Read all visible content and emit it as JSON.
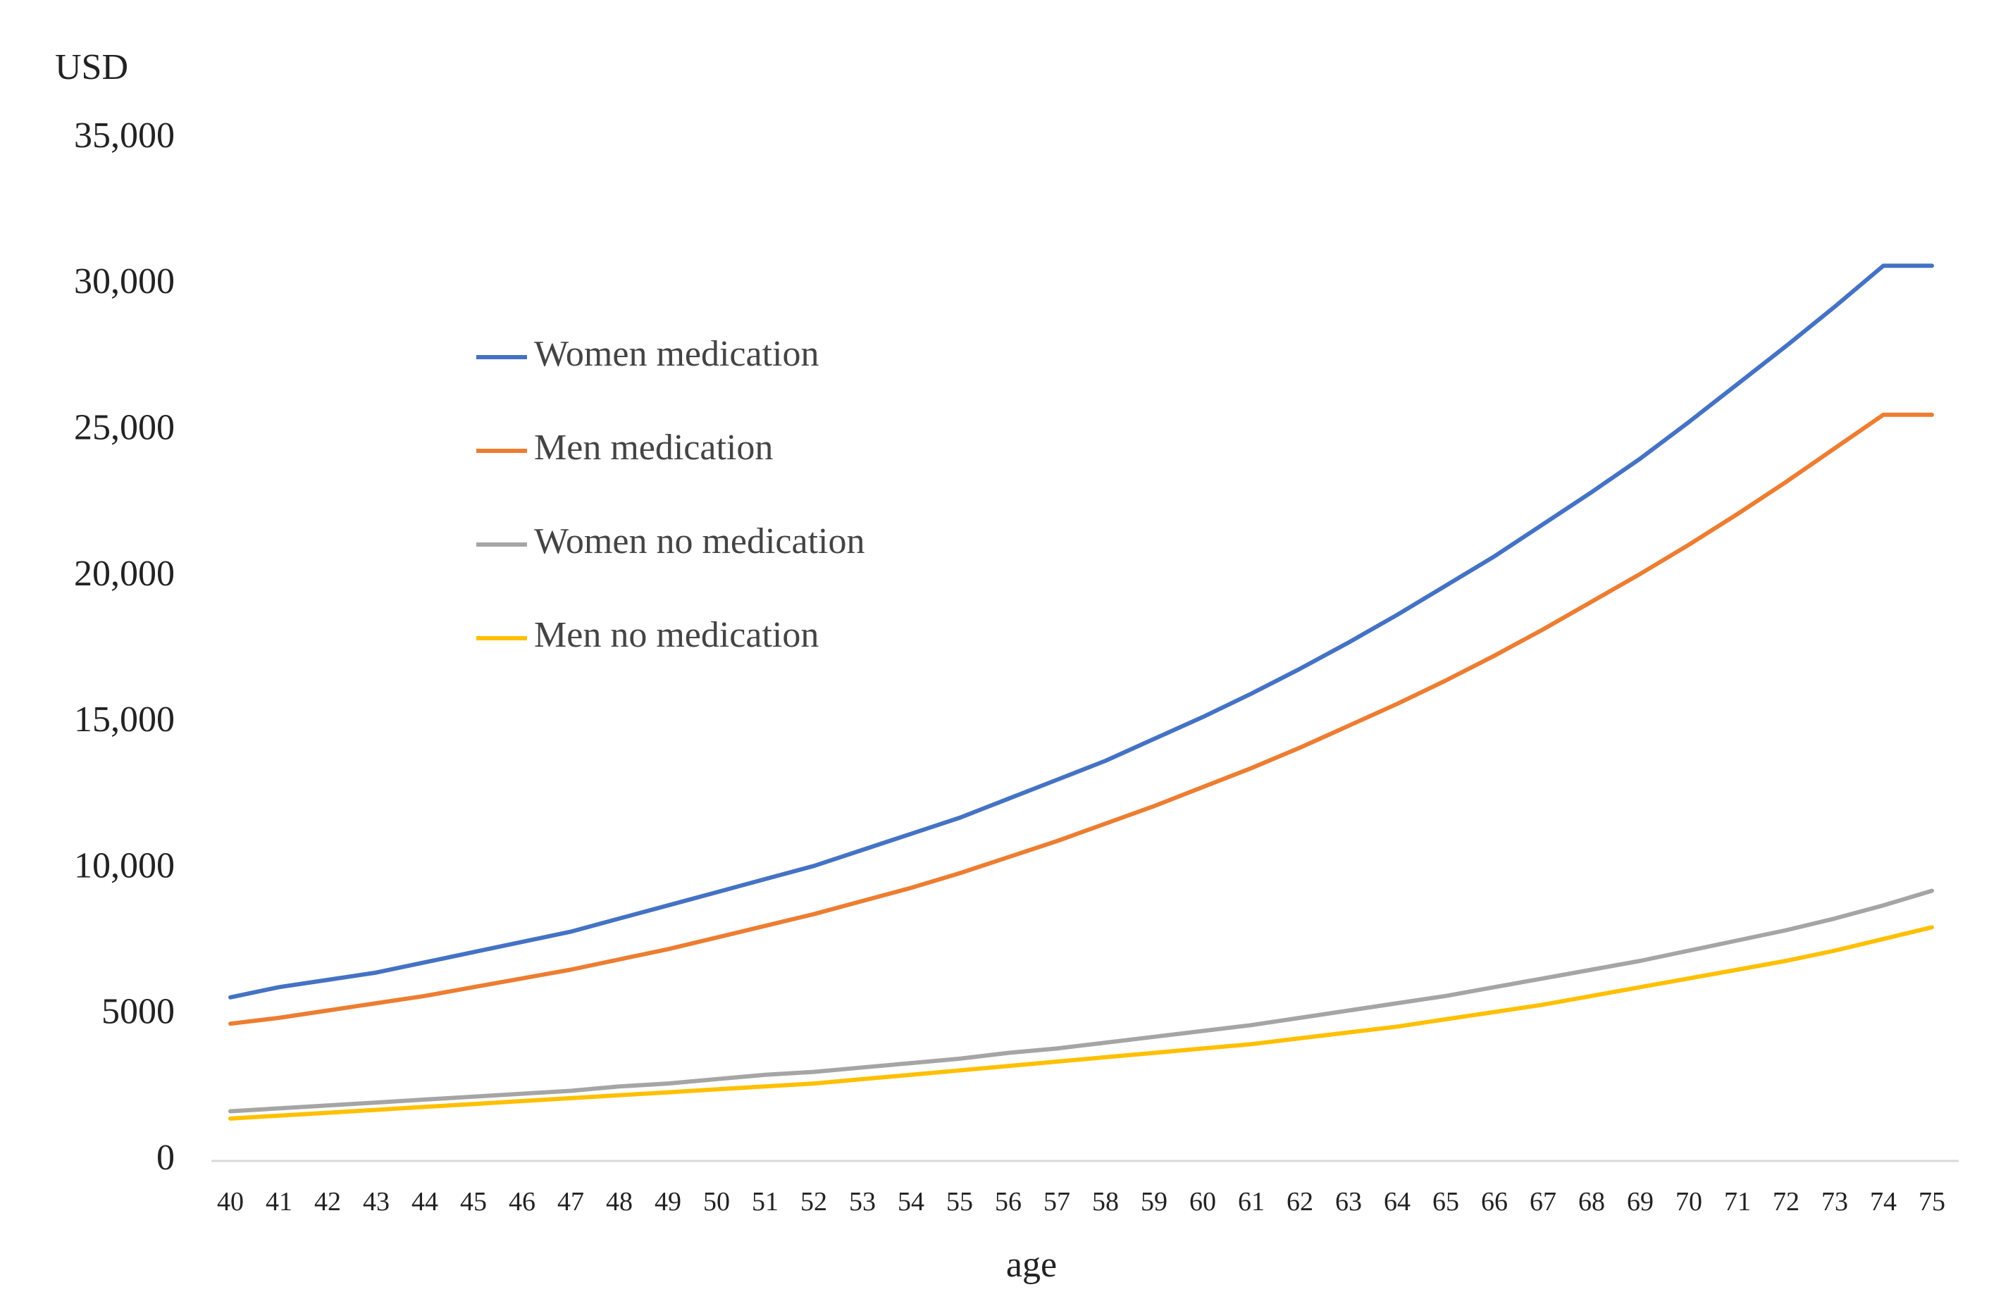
{
  "chart_data": {
    "type": "line",
    "title": "",
    "ylabel": "USD",
    "xlabel": "age",
    "ylim": [
      0,
      35000
    ],
    "y_ticks": [
      0,
      5000,
      10000,
      15000,
      20000,
      25000,
      30000,
      35000
    ],
    "y_tick_labels": [
      "0",
      "5000",
      "10,000",
      "15,000",
      "20,000",
      "25,000",
      "30,000",
      "35,000"
    ],
    "legend_position": "upper-left-inside",
    "grid": false,
    "x": [
      40,
      41,
      42,
      43,
      44,
      45,
      46,
      47,
      48,
      49,
      50,
      51,
      52,
      53,
      54,
      55,
      56,
      57,
      58,
      59,
      60,
      61,
      62,
      63,
      64,
      65,
      66,
      67,
      68,
      69,
      70,
      71,
      72,
      73,
      74,
      75
    ],
    "series": [
      {
        "name": "Women medication",
        "color": "#4472C4",
        "values": [
          5600,
          5950,
          6200,
          6450,
          6800,
          7150,
          7500,
          7850,
          8300,
          8750,
          9200,
          9650,
          10100,
          10650,
          11200,
          11750,
          12400,
          13050,
          13700,
          14450,
          15200,
          16000,
          16850,
          17750,
          18700,
          19700,
          20700,
          21800,
          22900,
          24050,
          25300,
          26600,
          27900,
          29250,
          30650,
          30650
        ]
      },
      {
        "name": "Men  medication",
        "color": "#ED7D31",
        "values": [
          4700,
          4900,
          5150,
          5400,
          5650,
          5950,
          6250,
          6550,
          6900,
          7250,
          7650,
          8050,
          8450,
          8900,
          9350,
          9850,
          10400,
          10950,
          11550,
          12150,
          12800,
          13450,
          14150,
          14900,
          15650,
          16450,
          17300,
          18200,
          19150,
          20100,
          21100,
          22150,
          23250,
          24400,
          25550,
          25550
        ]
      },
      {
        "name": "Women no medication",
        "color": "#A5A5A5",
        "values": [
          1700,
          1800,
          1900,
          2000,
          2100,
          2200,
          2300,
          2400,
          2550,
          2650,
          2800,
          2950,
          3050,
          3200,
          3350,
          3500,
          3700,
          3850,
          4050,
          4250,
          4450,
          4650,
          4900,
          5150,
          5400,
          5650,
          5950,
          6250,
          6550,
          6850,
          7200,
          7550,
          7900,
          8300,
          8750,
          9250
        ]
      },
      {
        "name": "Men  no medication",
        "color": "#FFC000",
        "values": [
          1450,
          1550,
          1650,
          1750,
          1850,
          1950,
          2050,
          2150,
          2250,
          2350,
          2450,
          2550,
          2650,
          2800,
          2950,
          3100,
          3250,
          3400,
          3550,
          3700,
          3850,
          4000,
          4200,
          4400,
          4600,
          4850,
          5100,
          5350,
          5650,
          5950,
          6250,
          6550,
          6850,
          7200,
          7600,
          8000
        ]
      }
    ]
  }
}
